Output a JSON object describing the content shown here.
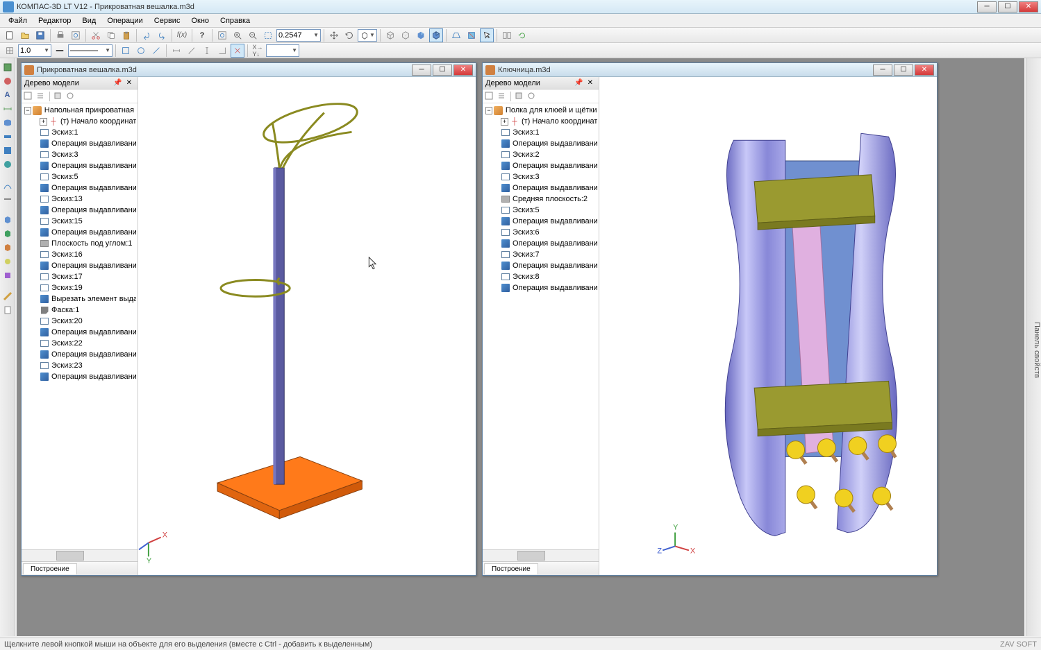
{
  "app": {
    "title": "КОМПАС-3D LT V12 - Прикроватная вешалка.m3d"
  },
  "menu": [
    "Файл",
    "Редактор",
    "Вид",
    "Операции",
    "Сервис",
    "Окно",
    "Справка"
  ],
  "toolbar1": {
    "zoom_value": "0.2547"
  },
  "toolbar2": {
    "line_width": "1.0"
  },
  "side_right_label": "Панель свойств",
  "doc1": {
    "title": "Прикроватная вешалка.m3d",
    "tree_title": "Дерево модели",
    "root": "Напольная прикроватная веш",
    "origin": "(т) Начало координат",
    "items": [
      {
        "t": "sketch",
        "l": "Эскиз:1"
      },
      {
        "t": "extrude",
        "l": "Операция выдавливани"
      },
      {
        "t": "sketch",
        "l": "Эскиз:3"
      },
      {
        "t": "extrude",
        "l": "Операция выдавливани"
      },
      {
        "t": "sketch",
        "l": "Эскиз:5"
      },
      {
        "t": "extrude",
        "l": "Операция выдавливани"
      },
      {
        "t": "sketch",
        "l": "Эскиз:13"
      },
      {
        "t": "extrude",
        "l": "Операция выдавливани"
      },
      {
        "t": "sketch",
        "l": "Эскиз:15"
      },
      {
        "t": "extrude",
        "l": "Операция выдавливани"
      },
      {
        "t": "plane",
        "l": "Плоскость под углом:1"
      },
      {
        "t": "sketch",
        "l": "Эскиз:16"
      },
      {
        "t": "extrude",
        "l": "Операция выдавливани"
      },
      {
        "t": "sketch",
        "l": "Эскиз:17"
      },
      {
        "t": "sketch",
        "l": "Эскиз:19"
      },
      {
        "t": "extrude",
        "l": "Вырезать элемент выдав"
      },
      {
        "t": "chamfer",
        "l": "Фаска:1"
      },
      {
        "t": "sketch",
        "l": "Эскиз:20"
      },
      {
        "t": "extrude",
        "l": "Операция выдавливани"
      },
      {
        "t": "sketch",
        "l": "Эскиз:22"
      },
      {
        "t": "extrude",
        "l": "Операция выдавливани"
      },
      {
        "t": "sketch",
        "l": "Эскиз:23"
      },
      {
        "t": "extrude",
        "l": "Операция выдавливани"
      }
    ],
    "tab": "Построение",
    "viewport": {
      "bg": "#ffffff",
      "base_color": "#ff7a1a",
      "pole_color": "#5a5aa0",
      "wire_color": "#8a8a20",
      "axis_x": "#d04040",
      "axis_y": "#40a040",
      "axis_z": "#4060d0"
    }
  },
  "doc2": {
    "title": "Ключница.m3d",
    "tree_title": "Дерево модели",
    "root": "Полка для клюей и щётки (Те",
    "origin": "(т) Начало координат",
    "items": [
      {
        "t": "sketch",
        "l": "Эскиз:1"
      },
      {
        "t": "extrude",
        "l": "Операция выдавливани"
      },
      {
        "t": "sketch",
        "l": "Эскиз:2"
      },
      {
        "t": "extrude",
        "l": "Операция выдавливани"
      },
      {
        "t": "sketch",
        "l": "Эскиз:3"
      },
      {
        "t": "extrude",
        "l": "Операция выдавливани"
      },
      {
        "t": "plane",
        "l": "Средняя плоскость:2"
      },
      {
        "t": "sketch",
        "l": "Эскиз:5"
      },
      {
        "t": "extrude",
        "l": "Операция выдавливани"
      },
      {
        "t": "sketch",
        "l": "Эскиз:6"
      },
      {
        "t": "extrude",
        "l": "Операция выдавливани"
      },
      {
        "t": "sketch",
        "l": "Эскиз:7"
      },
      {
        "t": "extrude",
        "l": "Операция выдавливани"
      },
      {
        "t": "sketch",
        "l": "Эскиз:8"
      },
      {
        "t": "extrude",
        "l": "Операция выдавливани"
      }
    ],
    "tab": "Построение",
    "viewport": {
      "bg": "#ffffff",
      "side_color_light": "#b8b8f0",
      "side_color_dark": "#6868c0",
      "shelf_color": "#9a9a30",
      "back_color_blue": "#7090d0",
      "back_color_pink": "#e0b0e0",
      "knob_color": "#f0d020",
      "stick_color": "#b08050"
    }
  },
  "status": {
    "msg": "Щелкните левой кнопкой мыши на объекте для его выделения (вместе с Ctrl - добавить к выделенным)",
    "brand": "ZAV SOFT"
  }
}
